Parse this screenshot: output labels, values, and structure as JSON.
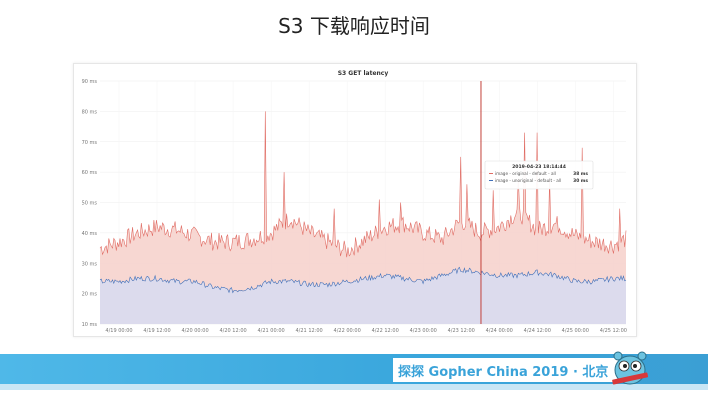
{
  "slide": {
    "title": "S3 下载响应时间"
  },
  "footer": {
    "banner_text": "探探 Gopher China 2019 · 北京",
    "mascot_icon": "gopher-mascot-icon"
  },
  "colors": {
    "original": "#e06c64",
    "original_fill": "#f6d3cd",
    "unoriginal": "#3f6fb9",
    "unoriginal_fill": "#d8dcef",
    "spike": "#c2403a"
  },
  "chart_data": {
    "type": "area",
    "title": "S3 GET latency",
    "ylim": [
      10,
      90
    ],
    "y_ticks": [
      "10 ms",
      "20 ms",
      "30 ms",
      "40 ms",
      "50 ms",
      "60 ms",
      "70 ms",
      "80 ms",
      "90 ms"
    ],
    "x_ticks": [
      "4/19 00:00",
      "4/19 12:00",
      "4/20 00:00",
      "4/20 12:00",
      "4/21 00:00",
      "4/21 12:00",
      "4/22 00:00",
      "4/22 12:00",
      "4/23 00:00",
      "4/23 12:00",
      "4/24 00:00",
      "4/24 12:00",
      "4/25 00:00",
      "4/25 12:00"
    ],
    "x_start": "2019-04-18 18:00",
    "x_end": "2019-04-25 16:00",
    "grid": true,
    "series": [
      {
        "name": "image - original - default - all",
        "x": [
          "2019-04-18 18:00",
          "2019-04-19 00:00",
          "2019-04-19 06:00",
          "2019-04-19 12:00",
          "2019-04-19 18:00",
          "2019-04-20 00:00",
          "2019-04-20 06:00",
          "2019-04-20 12:00",
          "2019-04-20 18:00",
          "2019-04-21 00:00",
          "2019-04-21 06:00",
          "2019-04-21 12:00",
          "2019-04-21 18:00",
          "2019-04-22 00:00",
          "2019-04-22 06:00",
          "2019-04-22 12:00",
          "2019-04-22 18:00",
          "2019-04-23 00:00",
          "2019-04-23 06:00",
          "2019-04-23 12:00",
          "2019-04-23 18:00",
          "2019-04-24 00:00",
          "2019-04-24 06:00",
          "2019-04-24 12:00",
          "2019-04-24 18:00",
          "2019-04-25 00:00",
          "2019-04-25 06:00",
          "2019-04-25 12:00",
          "2019-04-25 16:00"
        ],
        "values": [
          35,
          37,
          40,
          42,
          41,
          39,
          37,
          37,
          38,
          40,
          45,
          40,
          37,
          34,
          38,
          42,
          43,
          40,
          38,
          44,
          40,
          42,
          47,
          41,
          43,
          39,
          37,
          36,
          38
        ],
        "spikes": [
          {
            "x": "2019-04-20 22:00",
            "value": 80
          },
          {
            "x": "2019-04-21 04:00",
            "value": 60
          },
          {
            "x": "2019-04-21 20:00",
            "value": 48
          },
          {
            "x": "2019-04-22 10:00",
            "value": 51
          },
          {
            "x": "2019-04-22 17:00",
            "value": 50
          },
          {
            "x": "2019-04-23 12:00",
            "value": 65
          },
          {
            "x": "2019-04-23 14:00",
            "value": 56
          },
          {
            "x": "2019-04-23 22:00",
            "value": 54
          },
          {
            "x": "2019-04-24 06:00",
            "value": 58
          },
          {
            "x": "2019-04-24 08:00",
            "value": 73
          },
          {
            "x": "2019-04-24 12:00",
            "value": 73
          },
          {
            "x": "2019-04-24 16:00",
            "value": 58
          },
          {
            "x": "2019-04-25 02:00",
            "value": 68
          },
          {
            "x": "2019-04-25 14:00",
            "value": 48
          }
        ]
      },
      {
        "name": "image - unoriginal - default - all",
        "x": [
          "2019-04-18 18:00",
          "2019-04-19 00:00",
          "2019-04-19 06:00",
          "2019-04-19 12:00",
          "2019-04-19 18:00",
          "2019-04-20 00:00",
          "2019-04-20 06:00",
          "2019-04-20 12:00",
          "2019-04-20 18:00",
          "2019-04-21 00:00",
          "2019-04-21 06:00",
          "2019-04-21 12:00",
          "2019-04-21 18:00",
          "2019-04-22 00:00",
          "2019-04-22 06:00",
          "2019-04-22 12:00",
          "2019-04-22 18:00",
          "2019-04-23 00:00",
          "2019-04-23 06:00",
          "2019-04-23 12:00",
          "2019-04-23 18:00",
          "2019-04-24 00:00",
          "2019-04-24 06:00",
          "2019-04-24 12:00",
          "2019-04-24 18:00",
          "2019-04-25 00:00",
          "2019-04-25 06:00",
          "2019-04-25 12:00",
          "2019-04-25 16:00"
        ],
        "values": [
          24,
          24,
          25,
          25,
          24,
          24,
          22,
          21,
          22,
          24,
          24,
          23,
          23,
          24,
          25,
          26,
          25,
          24,
          26,
          28,
          27,
          26,
          26,
          27,
          26,
          24,
          24,
          25,
          25
        ],
        "spikes": []
      }
    ],
    "cursor_x": "2019-04-23 18:14",
    "tooltip": {
      "time": "2019-04-23 18:14:44",
      "rows": [
        {
          "label": "image - original - default - all",
          "value": "38 ms"
        },
        {
          "label": "image - unoriginal - default - all",
          "value": "30 ms"
        }
      ]
    }
  }
}
